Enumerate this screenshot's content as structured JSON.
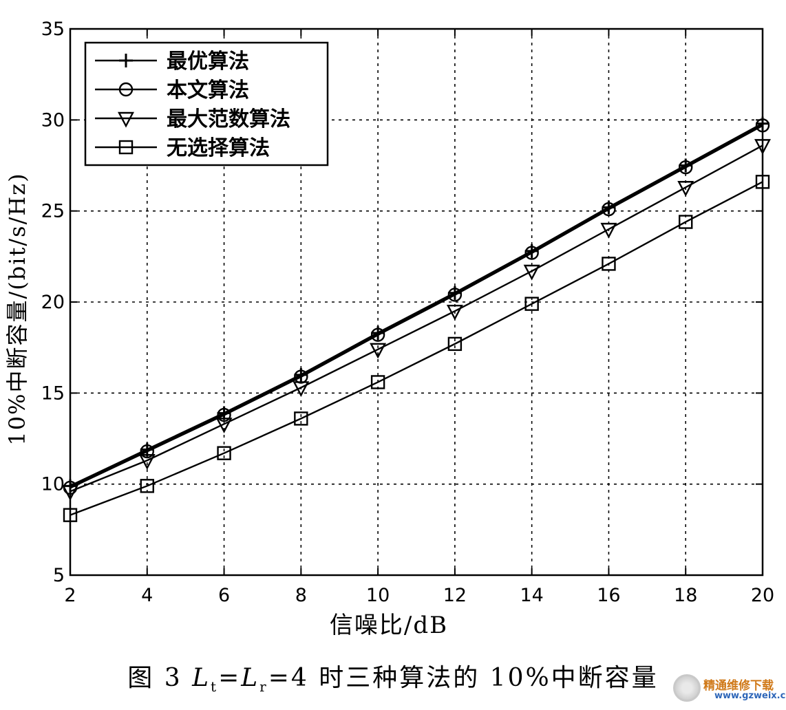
{
  "chart_data": {
    "type": "line",
    "xlabel": "信噪比/dB",
    "ylabel": "10%中断容量/(bit/s/Hz)",
    "x": [
      2,
      4,
      6,
      8,
      10,
      12,
      14,
      16,
      18,
      20
    ],
    "xlim": [
      2,
      20
    ],
    "ylim": [
      5,
      35
    ],
    "xticks": [
      "2",
      "4",
      "6",
      "8",
      "10",
      "12",
      "14",
      "16",
      "18",
      "20"
    ],
    "yticks": [
      "5",
      "10",
      "15",
      "20",
      "25",
      "30",
      "35"
    ],
    "grid": true,
    "legend_position": "top-left",
    "series": [
      {
        "name": "最优算法",
        "marker": "plus",
        "values": [
          9.9,
          11.9,
          13.9,
          16.0,
          18.3,
          20.5,
          22.8,
          25.2,
          27.5,
          29.8
        ]
      },
      {
        "name": "本文算法",
        "marker": "circle",
        "values": [
          9.8,
          11.8,
          13.8,
          15.9,
          18.2,
          20.4,
          22.7,
          25.1,
          27.4,
          29.7
        ]
      },
      {
        "name": "最大范数算法",
        "marker": "triangle-down",
        "values": [
          9.6,
          11.3,
          13.3,
          15.3,
          17.4,
          19.5,
          21.7,
          24.0,
          26.3,
          28.6
        ]
      },
      {
        "name": "无选择算法",
        "marker": "square",
        "values": [
          8.3,
          9.9,
          11.7,
          13.6,
          15.6,
          17.7,
          19.9,
          22.1,
          24.4,
          26.6
        ]
      }
    ]
  },
  "caption": {
    "fig_label": "图 3",
    "L_t": "L",
    "t_sub": "t",
    "eq1": "=",
    "L_r": "L",
    "r_sub": "r",
    "rest": "=4 时三种算法的 10%中断容量"
  },
  "watermark": {
    "name": "精通维修下载",
    "url": "www.gzweix.com"
  }
}
